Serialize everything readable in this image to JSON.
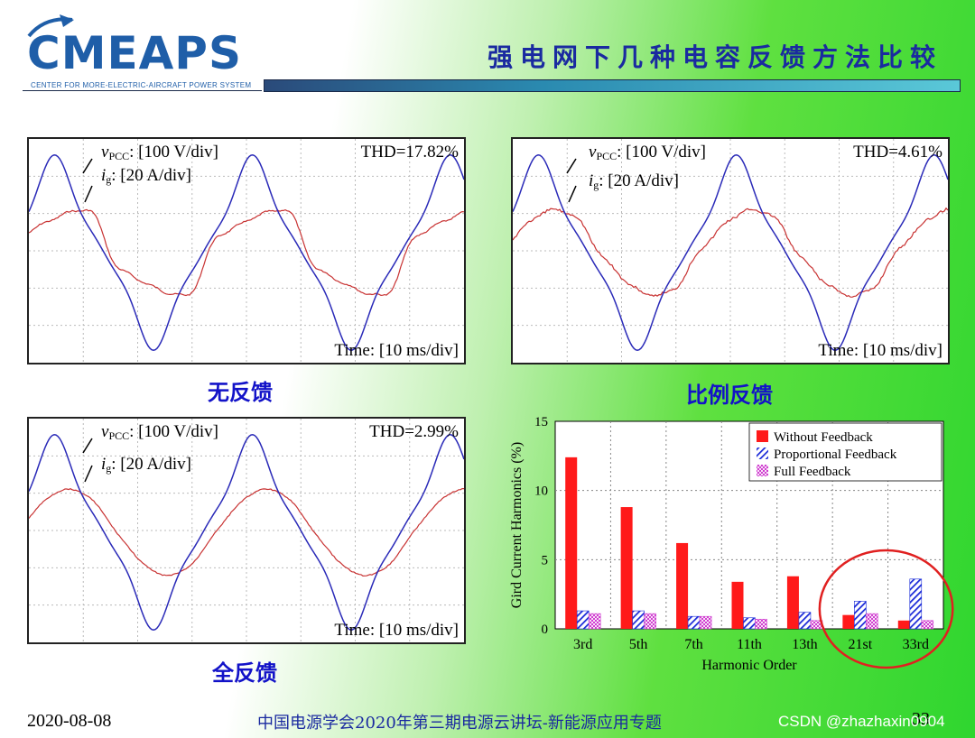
{
  "header": {
    "logo_text": "CMEAPS",
    "logo_sub": "CENTER FOR MORE-ELECTRIC-AIRCRAFT POWER SYSTEM",
    "title": "强电网下几种电容反馈方法比较"
  },
  "scopes": [
    {
      "v_label": "v",
      "v_sub": "PCC",
      "v_scale": ": [100 V/div]",
      "i_label": "i",
      "i_sub": "g",
      "i_scale": ": [20 A/div]",
      "thd": "THD=17.82%",
      "time": "Time: [10 ms/div]",
      "caption": "无反馈"
    },
    {
      "v_label": "v",
      "v_sub": "PCC",
      "v_scale": ": [100 V/div]",
      "i_label": "i",
      "i_sub": "g",
      "i_scale": ": [20 A/div]",
      "thd": "THD=4.61%",
      "time": "Time: [10 ms/div]",
      "caption": "比例反馈"
    },
    {
      "v_label": "v",
      "v_sub": "PCC",
      "v_scale": ": [100 V/div]",
      "i_label": "i",
      "i_sub": "g",
      "i_scale": ": [20 A/div]",
      "thd": "THD=2.99%",
      "time": "Time: [10 ms/div]",
      "caption": "全反馈"
    }
  ],
  "chart_data": {
    "type": "bar",
    "categories": [
      "3rd",
      "5th",
      "7th",
      "11th",
      "13th",
      "21st",
      "33rd"
    ],
    "series": [
      {
        "name": "Without Feedback",
        "values": [
          12.4,
          8.8,
          6.2,
          3.4,
          3.8,
          1.0,
          0.6
        ]
      },
      {
        "name": "Proportional Feedback",
        "values": [
          1.3,
          1.3,
          0.9,
          0.8,
          1.2,
          2.0,
          3.6
        ]
      },
      {
        "name": "Full Feedback",
        "values": [
          1.1,
          1.1,
          0.9,
          0.7,
          0.6,
          1.1,
          0.6
        ]
      }
    ],
    "xlabel": "Harmonic Order",
    "ylabel": "Gird Current Harmonics (%)",
    "ylim": [
      0,
      15
    ],
    "yticks": [
      0,
      5,
      10,
      15
    ],
    "grid": true,
    "legend": "top-right",
    "colors": {
      "without": "#ff1a1a",
      "proportional": "#1a2ad8",
      "full": "#d040d0"
    },
    "highlight": "21st, 33rd"
  },
  "footer": {
    "date": "2020-08-08",
    "center": "中国电源学会2020年第三期电源云讲坛-新能源应用专题",
    "page": "33",
    "csdn": "CSDN @zhazhaxin0904"
  }
}
